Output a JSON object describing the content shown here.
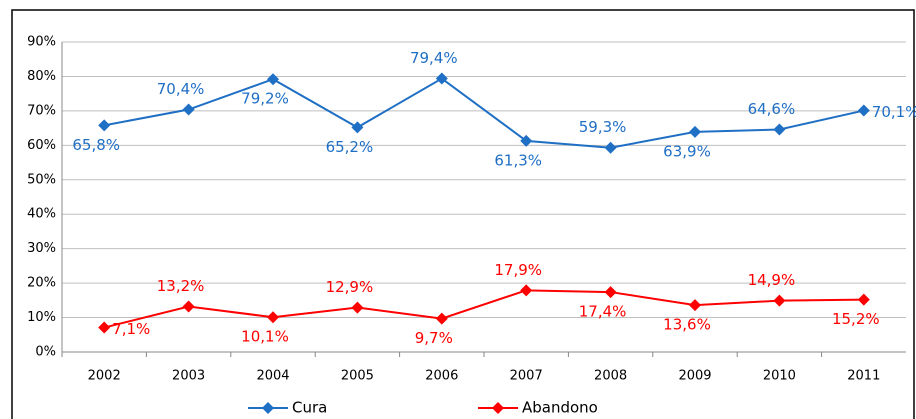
{
  "chart_data": {
    "type": "line",
    "categories": [
      "2002",
      "2003",
      "2004",
      "2005",
      "2006",
      "2007",
      "2008",
      "2009",
      "2010",
      "2011"
    ],
    "series": [
      {
        "name": "Cura",
        "color": "#1f6fc5",
        "values": [
          65.8,
          70.4,
          79.2,
          65.2,
          79.4,
          61.3,
          59.3,
          63.9,
          64.6,
          70.1
        ],
        "value_labels": [
          "65,8%",
          "70,4%",
          "79,2%",
          "65,2%",
          "79,4%",
          "61,3%",
          "59,3%",
          "63,9%",
          "64,6%",
          "70,1%"
        ]
      },
      {
        "name": "Abandono",
        "color": "#ff0000",
        "values": [
          7.1,
          13.2,
          10.1,
          12.9,
          9.7,
          17.9,
          17.4,
          13.6,
          14.9,
          15.2
        ],
        "value_labels": [
          "7,1%",
          "13,2%",
          "10,1%",
          "12,9%",
          "9,7%",
          "17,9%",
          "17,4%",
          "13,6%",
          "14,9%",
          "15,2%"
        ]
      }
    ],
    "ylim": [
      0,
      90
    ],
    "yticks": [
      {
        "value": 0,
        "label": "0%"
      },
      {
        "value": 10,
        "label": "10%"
      },
      {
        "value": 20,
        "label": "20%"
      },
      {
        "value": 30,
        "label": "30%"
      },
      {
        "value": 40,
        "label": "40%"
      },
      {
        "value": 50,
        "label": "50%"
      },
      {
        "value": 60,
        "label": "60%"
      },
      {
        "value": 70,
        "label": "70%"
      },
      {
        "value": 80,
        "label": "80%"
      },
      {
        "value": 90,
        "label": "90%"
      }
    ],
    "grid": true,
    "legend": "bottom"
  }
}
